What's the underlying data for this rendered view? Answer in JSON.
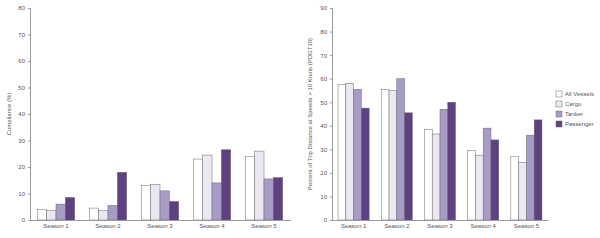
{
  "chart_data": [
    {
      "type": "bar",
      "y_label": "Compliance (%)",
      "categories": [
        "Season 1",
        "Season 2",
        "Season 3",
        "Season 4",
        "Season 5"
      ],
      "series": [
        {
          "name": "All Vessels",
          "color": "#ffffff",
          "values": [
            4,
            4.5,
            13,
            23,
            24
          ]
        },
        {
          "name": "Cargo",
          "color": "#ebe8f2",
          "values": [
            3.5,
            3.5,
            13.5,
            24.5,
            26
          ]
        },
        {
          "name": "Tanker",
          "color": "#a99bc8",
          "values": [
            6,
            5.5,
            11,
            14,
            15.5
          ]
        },
        {
          "name": "Passenger",
          "color": "#5e4181",
          "values": [
            8.5,
            18,
            7,
            26.5,
            16
          ]
        }
      ],
      "ylim": [
        0,
        80
      ],
      "yticks": [
        0,
        10,
        20,
        30,
        40,
        50,
        60,
        70,
        80
      ],
      "grid": false
    },
    {
      "type": "bar",
      "y_label": "Percent of Trip Distance at Speeds > 10 Knots (PDGT10)",
      "categories": [
        "Season 1",
        "Season 2",
        "Season 3",
        "Season 4",
        "Season 5"
      ],
      "series": [
        {
          "name": "All Vessels",
          "color": "#ffffff",
          "values": [
            57.5,
            55.5,
            38.5,
            29.5,
            27
          ]
        },
        {
          "name": "Cargo",
          "color": "#ebe8f2",
          "values": [
            58,
            55,
            36.5,
            27.5,
            24.5
          ]
        },
        {
          "name": "Tanker",
          "color": "#a99bc8",
          "values": [
            55.5,
            60,
            47,
            39,
            36
          ]
        },
        {
          "name": "Passenger",
          "color": "#5e4181",
          "values": [
            47.5,
            45.5,
            50,
            34,
            42.5
          ]
        }
      ],
      "ylim": [
        0,
        90
      ],
      "yticks": [
        0,
        10,
        20,
        30,
        40,
        50,
        60,
        70,
        80,
        90
      ],
      "grid": false,
      "legend": "right"
    }
  ]
}
